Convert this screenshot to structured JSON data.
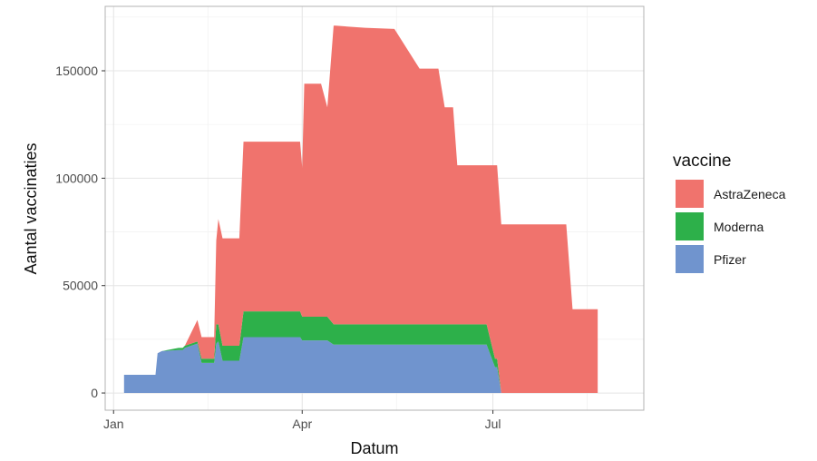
{
  "chart_data": {
    "type": "area",
    "stacked": true,
    "xlabel": "Datum",
    "ylabel": "Aantal vaccinaties",
    "x_ticks": [
      "Jan",
      "Apr",
      "Jul"
    ],
    "y_ticks": [
      "0",
      "50000",
      "100000",
      "150000"
    ],
    "y_tick_values": [
      0,
      50000,
      100000,
      150000
    ],
    "ylim": [
      -8000,
      180000
    ],
    "xlim": [
      "2020-12-28",
      "2021-09-11"
    ],
    "grid": true,
    "legend": {
      "title": "vaccine",
      "position": "right",
      "entries": [
        "AstraZeneca",
        "Moderna",
        "Pfizer"
      ]
    },
    "colors": {
      "Pfizer": "#7094CE",
      "Moderna": "#2DB04A",
      "AstraZeneca": "#F0736D"
    },
    "x": [
      "2021-01-06",
      "2021-01-21",
      "2021-01-22",
      "2021-01-24",
      "2021-02-01",
      "2021-02-03",
      "2021-02-04",
      "2021-02-10",
      "2021-02-12",
      "2021-02-13",
      "2021-02-14",
      "2021-02-18",
      "2021-02-19",
      "2021-02-20",
      "2021-02-22",
      "2021-03-02",
      "2021-03-04",
      "2021-03-31",
      "2021-04-01",
      "2021-04-02",
      "2021-04-10",
      "2021-04-13",
      "2021-04-16",
      "2021-04-17",
      "2021-05-01",
      "2021-05-15",
      "2021-05-27",
      "2021-06-05",
      "2021-06-08",
      "2021-06-12",
      "2021-06-14",
      "2021-06-28",
      "2021-07-02",
      "2021-07-03",
      "2021-07-05",
      "2021-08-05",
      "2021-08-08",
      "2021-08-20"
    ],
    "series": [
      {
        "name": "Pfizer",
        "values": [
          8500,
          8500,
          18500,
          19500,
          20000,
          20000,
          21000,
          23000,
          14000,
          14000,
          14000,
          14000,
          23000,
          24000,
          15000,
          15000,
          26000,
          26000,
          24500,
          24500,
          24500,
          24500,
          22500,
          22500,
          22500,
          22500,
          22500,
          22500,
          22500,
          22500,
          22500,
          22500,
          12000,
          12000,
          0,
          0,
          0,
          0
        ]
      },
      {
        "name": "Moderna",
        "values": [
          0,
          0,
          0,
          0,
          1000,
          1000,
          1000,
          1000,
          2000,
          2000,
          2000,
          2000,
          9000,
          8000,
          7000,
          7000,
          12000,
          12000,
          11000,
          11000,
          11000,
          11000,
          9500,
          9500,
          9500,
          9500,
          9500,
          9500,
          9500,
          9500,
          9500,
          9500,
          4000,
          4000,
          0,
          0,
          0,
          0
        ]
      },
      {
        "name": "AstraZeneca",
        "values": [
          0,
          0,
          0,
          0,
          0,
          0,
          0,
          10000,
          10000,
          10000,
          10000,
          10000,
          39000,
          49000,
          50000,
          50000,
          79000,
          79000,
          69500,
          108500,
          108500,
          97500,
          139000,
          139000,
          138000,
          137500,
          119000,
          119000,
          101000,
          101000,
          74000,
          74000,
          90000,
          90000,
          78500,
          78500,
          39000,
          39000
        ]
      }
    ]
  }
}
